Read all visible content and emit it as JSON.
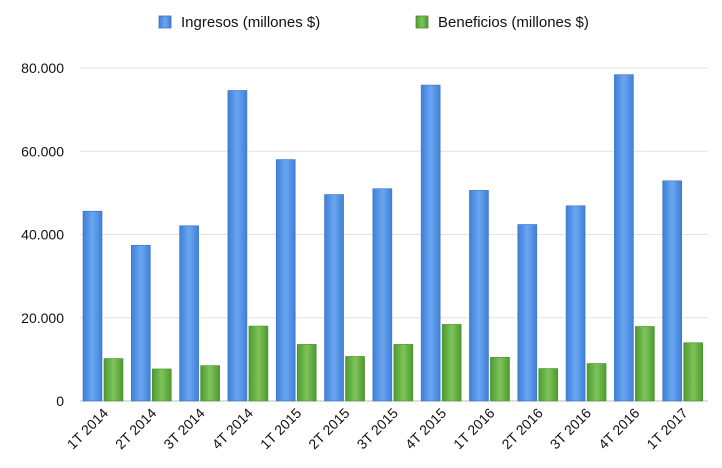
{
  "chart_data": {
    "type": "bar",
    "title": "",
    "xlabel": "",
    "ylabel": "",
    "ylim": [
      0,
      80000
    ],
    "yticks": [
      0,
      20000,
      40000,
      60000,
      80000
    ],
    "ytick_labels": [
      "0",
      "20.000",
      "40.000",
      "60.000",
      "80.000"
    ],
    "grid": true,
    "legend_position": "top",
    "categories": [
      "1T 2014",
      "2T 2014",
      "3T 2014",
      "4T 2014",
      "1T 2015",
      "2T 2015",
      "3T 2015",
      "4T 2015",
      "1T 2016",
      "2T 2016",
      "3T 2016",
      "4T 2016",
      "1T 2017"
    ],
    "series": [
      {
        "name": "Ingresos (millones $)",
        "color": "#4d8fe3",
        "values": [
          45600,
          37400,
          42100,
          74600,
          58000,
          49600,
          51000,
          75900,
          50600,
          42400,
          46900,
          78400,
          52900
        ]
      },
      {
        "name": "Beneficios (millones $)",
        "color": "#5fad3e",
        "values": [
          10200,
          7700,
          8500,
          18000,
          13600,
          10700,
          13600,
          18400,
          10500,
          7800,
          9000,
          17900,
          14000
        ]
      }
    ]
  }
}
